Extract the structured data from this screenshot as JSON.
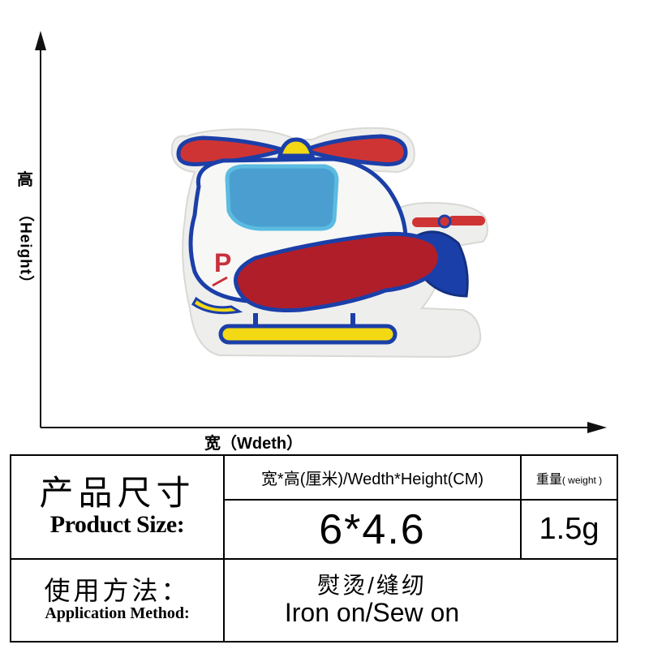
{
  "axes": {
    "height_cn": "高",
    "height_en": "（Height）",
    "width_label": "宽（Wdeth）"
  },
  "patch": {
    "letter": "P",
    "colors": {
      "felt": "#eeeeec",
      "outline": "#1b3fa8",
      "window": "#4a9fd0",
      "body_red": "#b01e2a",
      "rotor_red": "#cf3434",
      "skid": "#f2d914"
    }
  },
  "table": {
    "product_size_cn": "产品尺寸",
    "product_size_en": "Product Size:",
    "dimensions_header": "宽*高(厘米)/Wedth*Height(CM)",
    "weight_header_cn": "重量",
    "weight_header_en": "( weight )",
    "dimensions_value": "6*4.6",
    "weight_value": "1.5g",
    "application_cn": "使用方法：",
    "application_en": "Application Method:",
    "method_cn": "熨烫/缝纫",
    "method_en": "Iron on/Sew on"
  }
}
